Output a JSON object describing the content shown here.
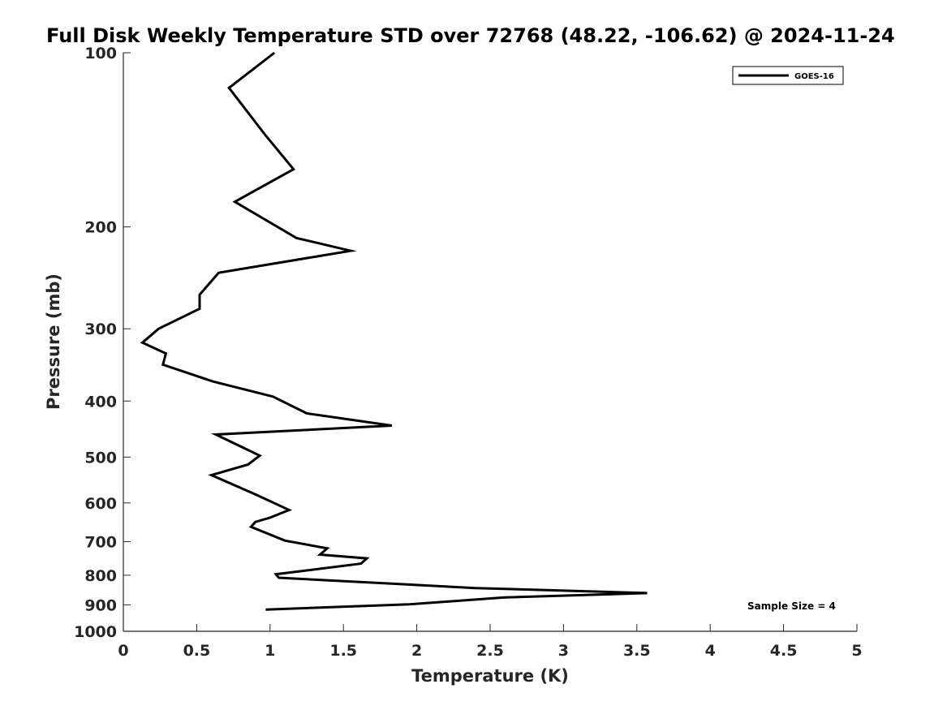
{
  "chart_data": {
    "type": "line",
    "title": "Full Disk Weekly Temperature STD over 72768 (48.22, -106.62) @ 2024-11-24",
    "xlabel": "Temperature (K)",
    "ylabel": "Pressure (mb)",
    "xlim": [
      0,
      5
    ],
    "ylim": [
      100,
      1000
    ],
    "y_scale": "log",
    "y_reversed": true,
    "x_ticks": [
      0,
      0.5,
      1,
      1.5,
      2,
      2.5,
      3,
      3.5,
      4,
      4.5,
      5
    ],
    "x_tick_labels": [
      "0",
      "0.5",
      "1",
      "1.5",
      "2",
      "2.5",
      "3",
      "3.5",
      "4",
      "4.5",
      "5"
    ],
    "y_ticks": [
      100,
      200,
      300,
      400,
      500,
      600,
      700,
      800,
      900,
      1000
    ],
    "y_tick_labels": [
      "100",
      "200",
      "300",
      "400",
      "500",
      "600",
      "700",
      "800",
      "900",
      "1000"
    ],
    "grid": false,
    "legend_position": "top-right",
    "series": [
      {
        "name": "GOES-16",
        "color": "#000000",
        "x": [
          1.03,
          0.72,
          0.97,
          1.16,
          0.76,
          1.18,
          1.55,
          0.65,
          0.52,
          0.52,
          0.24,
          0.13,
          0.29,
          0.27,
          0.61,
          1.02,
          1.25,
          1.83,
          0.63,
          0.82,
          0.93,
          0.85,
          0.6,
          0.9,
          1.13,
          1.0,
          0.9,
          0.87,
          1.1,
          1.39,
          1.34,
          1.66,
          1.62,
          1.04,
          1.06,
          2.4,
          3.57,
          2.6,
          1.95,
          0.97
        ],
        "y": [
          100,
          115,
          139,
          159,
          181,
          209,
          220,
          240,
          262,
          277,
          300,
          317,
          331,
          346,
          370,
          393,
          420,
          441,
          457,
          482,
          497,
          515,
          537,
          580,
          617,
          636,
          647,
          660,
          697,
          719,
          737,
          748,
          764,
          797,
          808,
          842,
          859,
          874,
          898,
          917
        ]
      }
    ],
    "annotations": [
      "Sample Size = 4"
    ]
  }
}
